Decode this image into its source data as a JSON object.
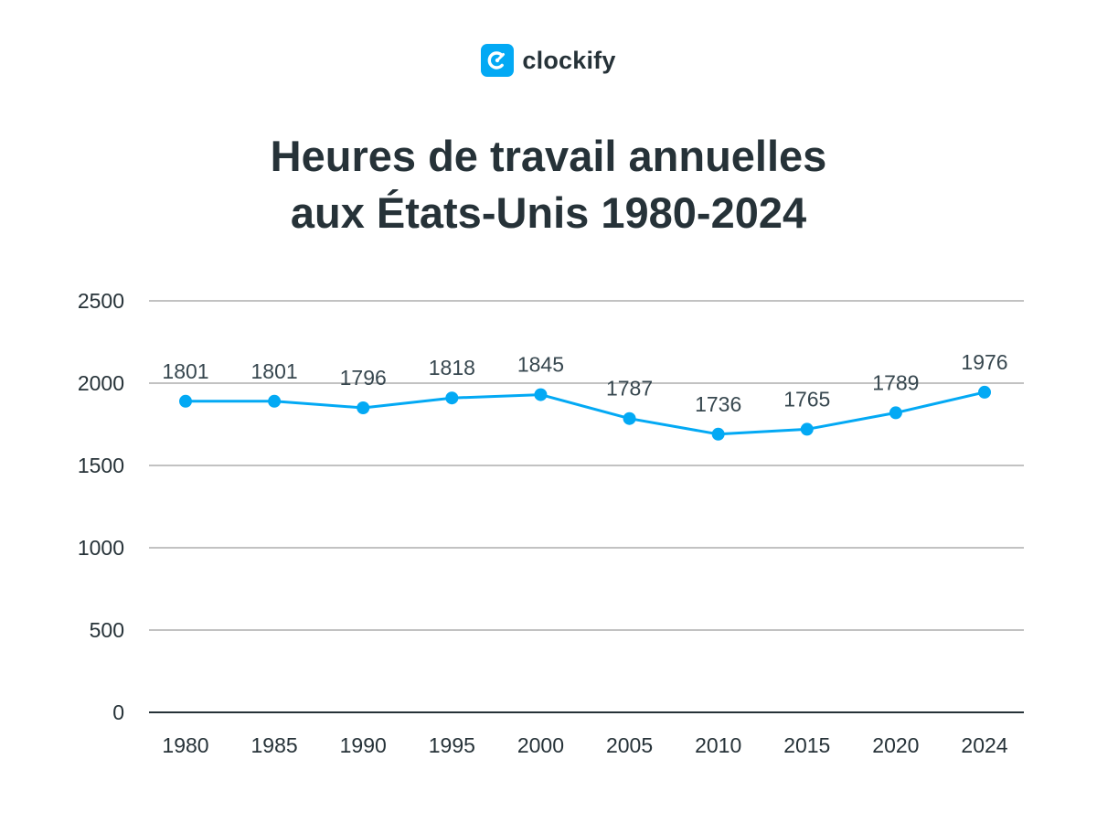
{
  "brand": {
    "name": "clockify",
    "icon": "clockify-logo-icon",
    "color": "#03a9f4"
  },
  "chart_data": {
    "type": "line",
    "title_lines": [
      "Heures de travail annuelles",
      "aux États-Unis 1980-2024"
    ],
    "xlabel": "",
    "ylabel": "",
    "categories": [
      "1980",
      "1985",
      "1990",
      "1995",
      "2000",
      "2005",
      "2010",
      "2015",
      "2020",
      "2024"
    ],
    "values": [
      1801,
      1801,
      1796,
      1818,
      1845,
      1787,
      1736,
      1765,
      1789,
      1976
    ],
    "plotted_values": [
      1890,
      1890,
      1850,
      1910,
      1930,
      1785,
      1690,
      1720,
      1820,
      1945
    ],
    "y_ticks": [
      0,
      500,
      1000,
      1500,
      2000,
      2500
    ],
    "ylim": [
      0,
      2500
    ],
    "grid": true,
    "legend": "none",
    "line_color": "#03a9f4",
    "grid_color": "#9e9e9e",
    "axis_color": "#263238"
  }
}
